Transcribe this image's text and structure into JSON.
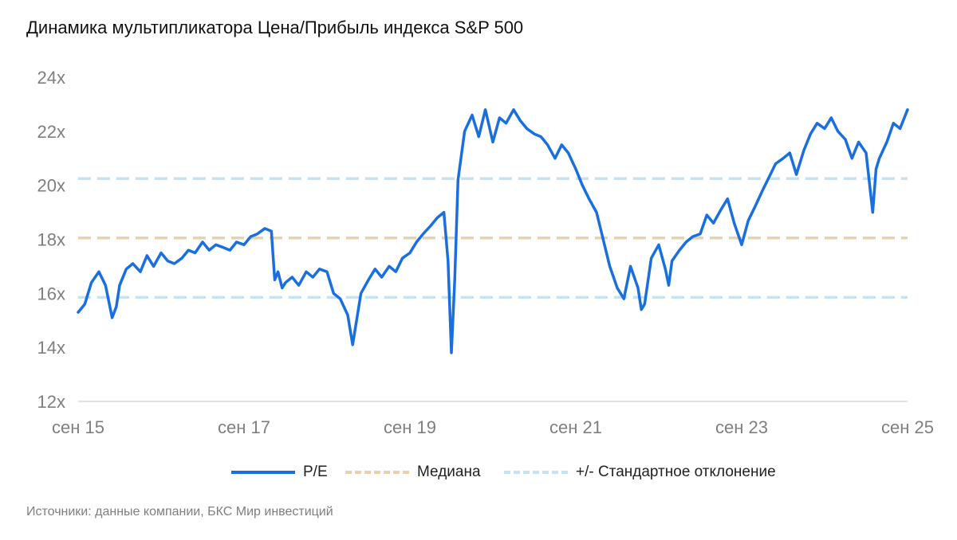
{
  "title": "Динамика мультипликатора Цена/Прибыль индекса S&P 500",
  "source": "Источники: данные компании, БКС Мир инвестиций",
  "colors": {
    "pe": "#1a6fe0",
    "median": "#e6d2ae",
    "std": "#c6e3f1",
    "axis": "#d9d9d9",
    "tick": "#7f7f7f"
  },
  "chart_data": {
    "type": "line",
    "title": "Динамика мультипликатора Цена/Прибыль индекса S&P 500",
    "xlabel": "",
    "ylabel": "",
    "ylim": [
      12,
      24
    ],
    "yticks": [
      12,
      14,
      16,
      18,
      20,
      22,
      24
    ],
    "ytick_labels": [
      "12x",
      "14x",
      "16x",
      "18x",
      "20x",
      "22x",
      "24x"
    ],
    "xlim": [
      2015.67,
      2025.67
    ],
    "xticks": [
      2015.67,
      2017.67,
      2019.67,
      2021.67,
      2023.67,
      2025.67
    ],
    "xtick_labels": [
      "сен 15",
      "сен 17",
      "сен 19",
      "сен 21",
      "сен 23",
      "сен 25"
    ],
    "grid": false,
    "legend_position": "bottom",
    "series": [
      {
        "name": "P/E",
        "style": "solid",
        "x": [
          2015.67,
          2015.75,
          2015.83,
          2015.92,
          2016.0,
          2016.08,
          2016.13,
          2016.17,
          2016.25,
          2016.33,
          2016.42,
          2016.5,
          2016.58,
          2016.67,
          2016.75,
          2016.83,
          2016.92,
          2017.0,
          2017.08,
          2017.17,
          2017.25,
          2017.33,
          2017.42,
          2017.5,
          2017.58,
          2017.67,
          2017.75,
          2017.83,
          2017.92,
          2018.0,
          2018.04,
          2018.08,
          2018.13,
          2018.17,
          2018.25,
          2018.33,
          2018.42,
          2018.5,
          2018.58,
          2018.67,
          2018.75,
          2018.83,
          2018.92,
          2018.98,
          2019.08,
          2019.17,
          2019.25,
          2019.33,
          2019.42,
          2019.5,
          2019.58,
          2019.67,
          2019.75,
          2019.83,
          2019.92,
          2020.0,
          2020.08,
          2020.13,
          2020.17,
          2020.21,
          2020.25,
          2020.33,
          2020.42,
          2020.5,
          2020.58,
          2020.67,
          2020.75,
          2020.83,
          2020.92,
          2021.0,
          2021.08,
          2021.17,
          2021.25,
          2021.33,
          2021.42,
          2021.5,
          2021.58,
          2021.67,
          2021.75,
          2021.83,
          2021.92,
          2022.0,
          2022.08,
          2022.17,
          2022.25,
          2022.33,
          2022.42,
          2022.46,
          2022.5,
          2022.58,
          2022.67,
          2022.75,
          2022.79,
          2022.83,
          2022.92,
          2023.0,
          2023.08,
          2023.17,
          2023.25,
          2023.33,
          2023.42,
          2023.5,
          2023.58,
          2023.67,
          2023.75,
          2023.83,
          2023.92,
          2024.0,
          2024.08,
          2024.17,
          2024.25,
          2024.33,
          2024.42,
          2024.5,
          2024.58,
          2024.67,
          2024.75,
          2024.83,
          2024.92,
          2025.0,
          2025.08,
          2025.17,
          2025.25,
          2025.29,
          2025.33,
          2025.42,
          2025.5,
          2025.58,
          2025.67
        ],
        "y": [
          15.3,
          15.6,
          16.4,
          16.8,
          16.3,
          15.1,
          15.5,
          16.3,
          16.9,
          17.1,
          16.8,
          17.4,
          17.0,
          17.5,
          17.2,
          17.1,
          17.3,
          17.6,
          17.5,
          17.9,
          17.6,
          17.8,
          17.7,
          17.6,
          17.9,
          17.8,
          18.1,
          18.2,
          18.4,
          18.3,
          16.5,
          16.8,
          16.2,
          16.4,
          16.6,
          16.3,
          16.8,
          16.6,
          16.9,
          16.8,
          16.0,
          15.8,
          15.2,
          14.1,
          16.0,
          16.5,
          16.9,
          16.6,
          17.0,
          16.8,
          17.3,
          17.5,
          17.9,
          18.2,
          18.5,
          18.8,
          19.0,
          17.2,
          13.8,
          16.5,
          20.2,
          22.0,
          22.6,
          21.8,
          22.8,
          21.6,
          22.5,
          22.3,
          22.8,
          22.4,
          22.1,
          21.9,
          21.8,
          21.5,
          21.0,
          21.5,
          21.2,
          20.6,
          20.0,
          19.5,
          19.0,
          18.0,
          17.0,
          16.2,
          15.8,
          17.0,
          16.2,
          15.4,
          15.6,
          17.3,
          17.8,
          16.9,
          16.3,
          17.2,
          17.6,
          17.9,
          18.1,
          18.2,
          18.9,
          18.6,
          19.1,
          19.5,
          18.6,
          17.8,
          18.7,
          19.2,
          19.8,
          20.3,
          20.8,
          21.0,
          21.2,
          20.4,
          21.3,
          21.9,
          22.3,
          22.1,
          22.5,
          22.0,
          21.7,
          21.0,
          21.6,
          21.2,
          19.0,
          20.6,
          21.0,
          21.6,
          22.3,
          22.1,
          22.8
        ]
      },
      {
        "name": "Медиана",
        "style": "dashed",
        "y": 18.05
      },
      {
        "name": "+/- Стандартное отклонение",
        "style": "dashed",
        "y": [
          15.85,
          20.25
        ]
      }
    ]
  }
}
